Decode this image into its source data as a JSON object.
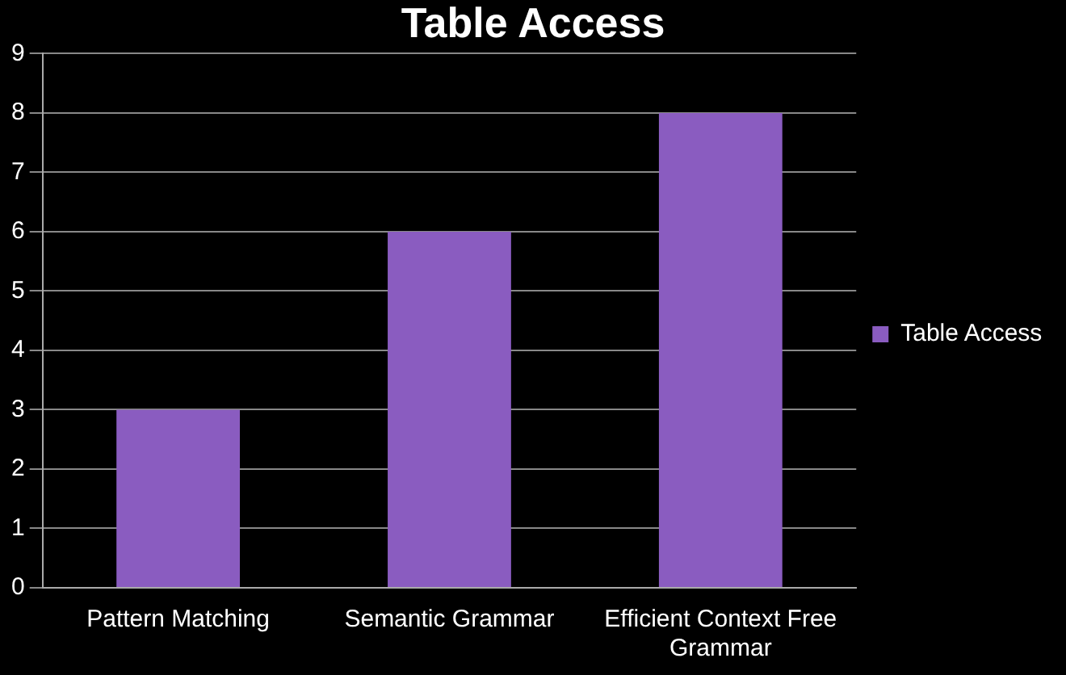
{
  "chart_data": {
    "type": "bar",
    "title": "Table Access",
    "categories": [
      "Pattern Matching",
      "Semantic Grammar",
      "Efficient Context Free Grammar"
    ],
    "series": [
      {
        "name": "Table Access",
        "color": "#8a5cc0",
        "values": [
          3,
          6,
          8
        ]
      }
    ],
    "ylim": [
      0,
      9
    ],
    "yticks": [
      0,
      1,
      2,
      3,
      4,
      5,
      6,
      7,
      8,
      9
    ],
    "grid": "y",
    "legend": "right"
  }
}
